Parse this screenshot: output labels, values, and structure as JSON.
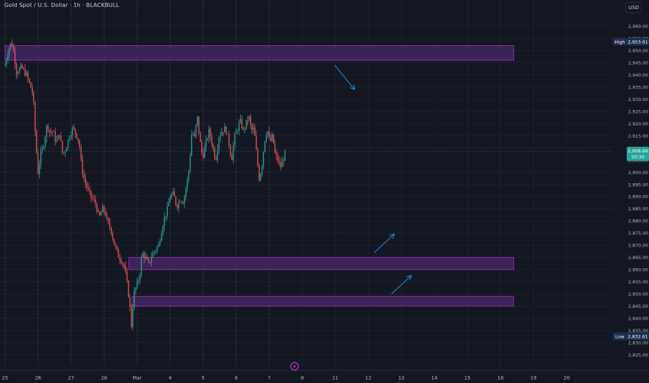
{
  "header": {
    "title": "Gold Spot / U.S. Dollar · 1h · BLACKBULL"
  },
  "currency": "USD",
  "colors": {
    "background": "#131722",
    "up": "#26a69a",
    "down": "#ef5350",
    "zone_fill": "#4a2a6a",
    "zone_stroke": "#9c27b0",
    "arrow": "#2196f3",
    "grid": "#1e222d",
    "vline": "#363a45"
  },
  "price_tags": {
    "high": {
      "label": "High",
      "value": "2,953.61",
      "price": 2953.61
    },
    "current": {
      "value": "2,908.66",
      "countdown": "50:30",
      "price": 2908.66
    },
    "low": {
      "label": "Low",
      "value": "2,832.61",
      "price": 2832.61
    }
  },
  "chart_data": {
    "type": "candlestick",
    "title": "Gold Spot / U.S. Dollar · 1h · BLACKBULL",
    "ylim": [
      2822,
      2965
    ],
    "y_ticks": [
      2825,
      2830,
      2835,
      2840,
      2845,
      2850,
      2855,
      2860,
      2865,
      2870,
      2875,
      2880,
      2885,
      2890,
      2895,
      2900,
      2905,
      2910,
      2915,
      2920,
      2925,
      2930,
      2935,
      2940,
      2945,
      2950,
      2955,
      2960
    ],
    "y_tick_labels": [
      "2,825.00",
      "2,830.00",
      "2,835.00",
      "2,840.00",
      "2,845.00",
      "2,850.00",
      "2,855.00",
      "2,860.00",
      "2,865.00",
      "2,870.00",
      "2,875.00",
      "2,880.00",
      "2,885.00",
      "2,890.00",
      "2,895.00",
      "2,900.00",
      "2,905.00",
      "2,910.00",
      "2,915.00",
      "2,920.00",
      "2,925.00",
      "2,930.00",
      "2,935.00",
      "2,940.00",
      "2,945.00",
      "2,950.00",
      "2,955.00",
      "2,960.00"
    ],
    "x_ticks": [
      {
        "label": "25",
        "t": 0.0
      },
      {
        "label": "26",
        "t": 1.0
      },
      {
        "label": "27",
        "t": 2.0
      },
      {
        "label": "28",
        "t": 3.0
      },
      {
        "label": "Mar",
        "t": 4.0
      },
      {
        "label": "4",
        "t": 5.0
      },
      {
        "label": "5",
        "t": 6.0
      },
      {
        "label": "6",
        "t": 7.0
      },
      {
        "label": "7",
        "t": 8.0
      },
      {
        "label": "8",
        "t": 9.0
      },
      {
        "label": "11",
        "t": 10.0
      },
      {
        "label": "12",
        "t": 11.0
      },
      {
        "label": "13",
        "t": 12.0
      },
      {
        "label": "14",
        "t": 13.0
      },
      {
        "label": "15",
        "t": 14.0
      },
      {
        "label": "18",
        "t": 15.0
      },
      {
        "label": "19",
        "t": 16.0
      },
      {
        "label": "20",
        "t": 17.0
      }
    ],
    "x_range": [
      -0.15,
      18.4
    ],
    "session_lines": [
      0.0,
      1.0,
      2.0,
      3.0,
      4.0,
      5.0,
      6.0,
      7.0,
      8.0
    ],
    "zones": [
      {
        "from": 2946,
        "to": 2952,
        "t_start": 0.0,
        "t_end": 15.4,
        "label": "supply"
      },
      {
        "from": 2860,
        "to": 2865,
        "t_start": 3.75,
        "t_end": 15.4,
        "label": "demand"
      },
      {
        "from": 2845,
        "to": 2849,
        "t_start": 3.85,
        "t_end": 15.4,
        "label": "demand"
      }
    ],
    "arrows": [
      {
        "t1": 9.98,
        "p1": 2944.0,
        "t2": 10.58,
        "p2": 2934.0
      },
      {
        "t1": 11.18,
        "p1": 2867.0,
        "t2": 11.78,
        "p2": 2874.5
      },
      {
        "t1": 11.7,
        "p1": 2850.0,
        "t2": 12.3,
        "p2": 2857.5
      }
    ],
    "path": [
      [
        0.0,
        2944
      ],
      [
        0.1,
        2950
      ],
      [
        0.2,
        2953.61
      ],
      [
        0.28,
        2948
      ],
      [
        0.35,
        2941
      ],
      [
        0.5,
        2943
      ],
      [
        0.65,
        2940
      ],
      [
        0.78,
        2935
      ],
      [
        0.85,
        2932
      ],
      [
        0.92,
        2915
      ],
      [
        1.0,
        2900
      ],
      [
        1.08,
        2907
      ],
      [
        1.18,
        2912
      ],
      [
        1.28,
        2920
      ],
      [
        1.36,
        2916
      ],
      [
        1.45,
        2917
      ],
      [
        1.55,
        2912
      ],
      [
        1.65,
        2916
      ],
      [
        1.75,
        2907
      ],
      [
        1.85,
        2910
      ],
      [
        1.95,
        2915
      ],
      [
        2.05,
        2918
      ],
      [
        2.15,
        2916
      ],
      [
        2.25,
        2912
      ],
      [
        2.32,
        2902
      ],
      [
        2.4,
        2897
      ],
      [
        2.5,
        2893
      ],
      [
        2.6,
        2890
      ],
      [
        2.75,
        2887
      ],
      [
        2.85,
        2881
      ],
      [
        2.95,
        2885
      ],
      [
        3.05,
        2883
      ],
      [
        3.1,
        2879
      ],
      [
        3.2,
        2877
      ],
      [
        3.3,
        2871
      ],
      [
        3.42,
        2866
      ],
      [
        3.52,
        2864
      ],
      [
        3.62,
        2861
      ],
      [
        3.72,
        2852
      ],
      [
        3.78,
        2845
      ],
      [
        3.82,
        2836
      ],
      [
        3.9,
        2850
      ],
      [
        4.0,
        2854
      ],
      [
        4.08,
        2858
      ],
      [
        4.15,
        2867
      ],
      [
        4.25,
        2865
      ],
      [
        4.35,
        2862
      ],
      [
        4.45,
        2866
      ],
      [
        4.55,
        2868
      ],
      [
        4.65,
        2870
      ],
      [
        4.8,
        2880
      ],
      [
        4.92,
        2885
      ],
      [
        5.0,
        2890
      ],
      [
        5.1,
        2891
      ],
      [
        5.2,
        2886
      ],
      [
        5.3,
        2889
      ],
      [
        5.4,
        2888
      ],
      [
        5.5,
        2895
      ],
      [
        5.58,
        2902
      ],
      [
        5.66,
        2917
      ],
      [
        5.74,
        2914
      ],
      [
        5.82,
        2923
      ],
      [
        5.9,
        2913
      ],
      [
        5.98,
        2906
      ],
      [
        6.08,
        2912
      ],
      [
        6.18,
        2917
      ],
      [
        6.28,
        2911
      ],
      [
        6.38,
        2905
      ],
      [
        6.48,
        2915
      ],
      [
        6.58,
        2917
      ],
      [
        6.68,
        2918
      ],
      [
        6.78,
        2912
      ],
      [
        6.86,
        2905
      ],
      [
        6.94,
        2914
      ],
      [
        7.02,
        2917
      ],
      [
        7.12,
        2921
      ],
      [
        7.22,
        2917
      ],
      [
        7.3,
        2920
      ],
      [
        7.38,
        2923
      ],
      [
        7.46,
        2917
      ],
      [
        7.54,
        2918
      ],
      [
        7.62,
        2907
      ],
      [
        7.7,
        2897
      ],
      [
        7.78,
        2903
      ],
      [
        7.86,
        2913
      ],
      [
        7.94,
        2918
      ],
      [
        8.02,
        2912
      ],
      [
        8.1,
        2915
      ],
      [
        8.18,
        2907
      ],
      [
        8.26,
        2905
      ],
      [
        8.34,
        2902
      ],
      [
        8.42,
        2905
      ],
      [
        8.5,
        2908.66
      ]
    ]
  }
}
